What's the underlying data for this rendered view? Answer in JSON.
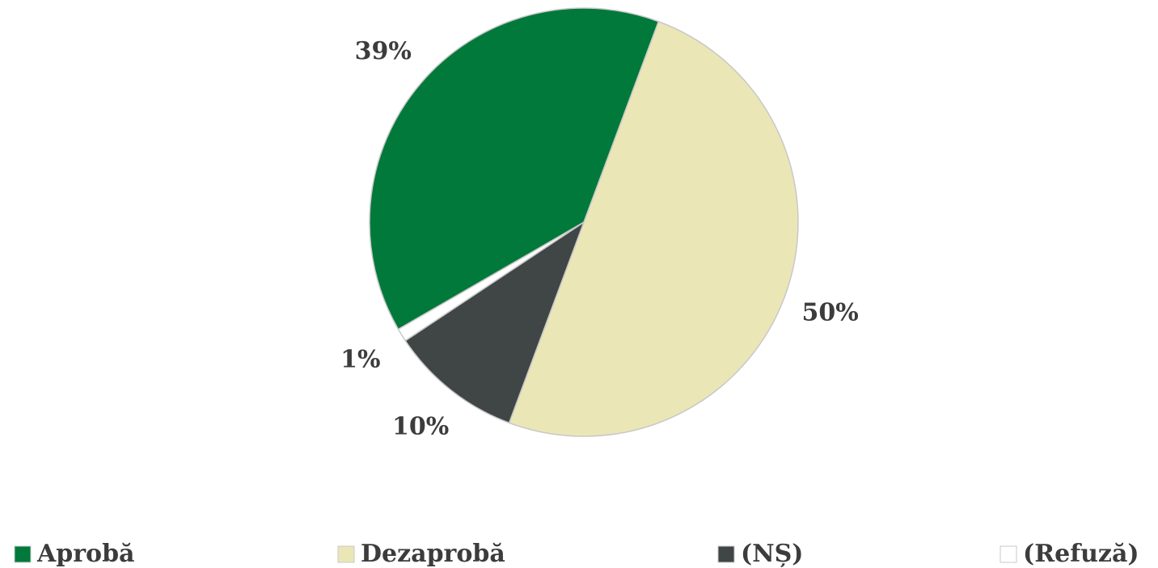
{
  "chart_data": {
    "type": "pie",
    "categories": [
      "Aprobă",
      "Dezaprobă",
      "(NȘ)",
      "(Refuză)"
    ],
    "values": [
      39,
      50,
      10,
      1
    ],
    "value_labels": [
      "39%",
      "50%",
      "10%",
      "1%"
    ],
    "colors": [
      "#00793a",
      "#ebe6b6",
      "#404645",
      "#ffffff"
    ],
    "legend": "bottom"
  }
}
